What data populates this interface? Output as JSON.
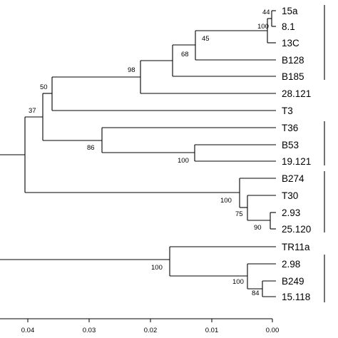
{
  "tree": {
    "leaves": [
      "15a",
      "8.1",
      "13C",
      "B128",
      "B185",
      "28.121",
      "T3",
      "T36",
      "B53",
      "19.121",
      "B274",
      "T30",
      "2.93",
      "25.120",
      "TR11a",
      "2.98",
      "B249",
      "15.118"
    ],
    "bootstrap_values": [
      "44",
      "100",
      "45",
      "68",
      "98",
      "50",
      "37",
      "86",
      "100",
      "100",
      "75",
      "90",
      "100",
      "100",
      "84"
    ],
    "axis": {
      "ticks": [
        "0.04",
        "0.03",
        "0.02",
        "0.01",
        "0.00"
      ],
      "reversed": true
    }
  }
}
